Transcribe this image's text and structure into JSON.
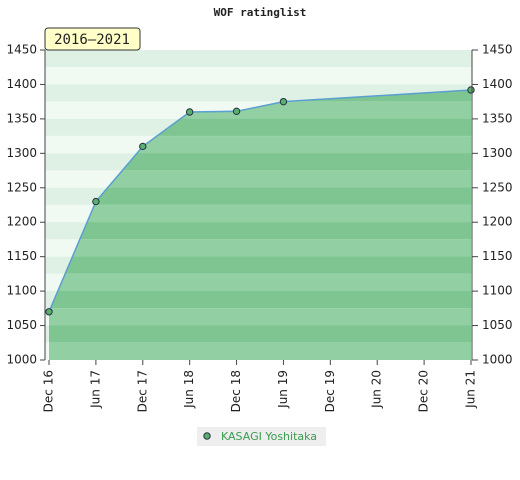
{
  "chart_data": {
    "type": "area",
    "title": "WOF ratinglist",
    "badge": "2016–2021",
    "categories": [
      "Dec 16",
      "Jun 17",
      "Dec 17",
      "Jun 18",
      "Dec 18",
      "Jun 19",
      "Dec 19",
      "Jun 20",
      "Dec 20",
      "Jun 21"
    ],
    "series": [
      {
        "name": "KASAGI Yoshitaka",
        "color": "#5a9fd0",
        "x": [
          "Dec 16",
          "Jun 17",
          "Dec 17",
          "Jun 18",
          "Dec 18",
          "Jun 19",
          "Jun 21"
        ],
        "values": [
          1070,
          1230,
          1310,
          1360,
          1361,
          1375,
          1392
        ]
      }
    ],
    "ylim": [
      1000,
      1450
    ],
    "yticks": [
      1000,
      1050,
      1100,
      1150,
      1200,
      1250,
      1300,
      1350,
      1400,
      1450
    ],
    "y2lim": [
      1000,
      1450
    ],
    "y2ticks": [
      1000,
      1050,
      1100,
      1150,
      1200,
      1250,
      1300,
      1350,
      1400,
      1450
    ]
  }
}
